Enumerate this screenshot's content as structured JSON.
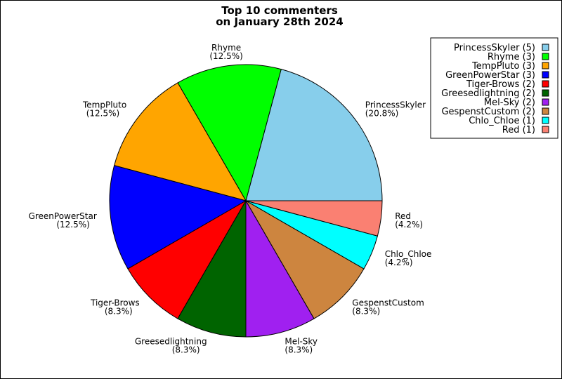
{
  "chart_data": {
    "type": "pie",
    "title": [
      "Top 10 commenters",
      "on January 28th 2024"
    ],
    "start_angle_deg": 0,
    "direction": "counterclockwise",
    "slices": [
      {
        "name": "PrincessSkyler",
        "value": 5,
        "percent": "20.8%",
        "legend": "PrincessSkyler (5)",
        "color": "#87CEEB"
      },
      {
        "name": "Rhyme",
        "value": 3,
        "percent": "12.5%",
        "legend": "Rhyme (3)",
        "color": "#00FF00"
      },
      {
        "name": "TempPluto",
        "value": 3,
        "percent": "12.5%",
        "legend": "TempPluto (3)",
        "color": "#FFA500"
      },
      {
        "name": "GreenPowerStar",
        "value": 3,
        "percent": "12.5%",
        "legend": "GreenPowerStar (3)",
        "color": "#0000FF"
      },
      {
        "name": "Tiger-Brows",
        "value": 2,
        "percent": "8.3%",
        "legend": "Tiger-Brows (2)",
        "color": "#FF0000"
      },
      {
        "name": "Greesedlightning",
        "value": 2,
        "percent": "8.3%",
        "legend": "Greesedlightning (2)",
        "color": "#006400"
      },
      {
        "name": "Mel-Sky",
        "value": 2,
        "percent": "8.3%",
        "legend": "Mel-Sky (2)",
        "color": "#A020F0"
      },
      {
        "name": "GespenstCustom",
        "value": 2,
        "percent": "8.3%",
        "legend": "GespenstCustom (2)",
        "color": "#CD853F"
      },
      {
        "name": "Chlo_Chloe",
        "value": 1,
        "percent": "4.2%",
        "legend": "Chlo_Chloe (1)",
        "color": "#00FFFF"
      },
      {
        "name": "Red",
        "value": 1,
        "percent": "4.2%",
        "legend": "Red (1)",
        "color": "#FA8072"
      }
    ],
    "legend_position": "top-right"
  }
}
